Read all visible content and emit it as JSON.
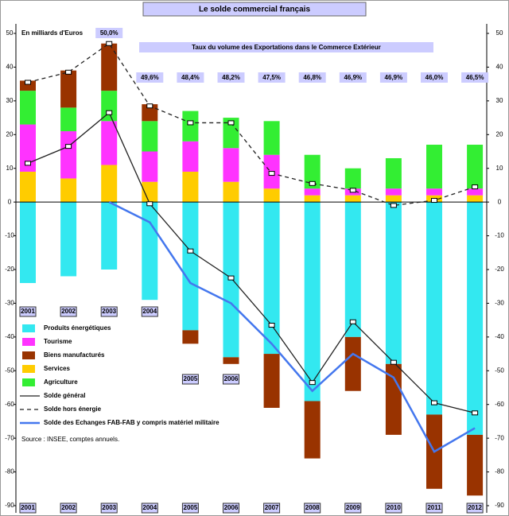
{
  "chart_data": {
    "type": "bar",
    "title": "Le solde commercial français",
    "y_label": "En milliards d'Euros",
    "source": "Source : INSEE, comptes annuels.",
    "categories": [
      "2001",
      "2002",
      "2003",
      "2004",
      "2005",
      "2006",
      "2007",
      "2008",
      "2009",
      "2010",
      "2011",
      "2012"
    ],
    "ylim": [
      -90,
      50
    ],
    "yticks": [
      -90,
      -80,
      -70,
      -60,
      -50,
      -40,
      -30,
      -20,
      -10,
      0,
      10,
      20,
      30,
      40,
      50
    ],
    "series": [
      {
        "name": "Produits énergétiques",
        "type": "bar",
        "color": "#33e8f0",
        "values": [
          -24,
          -22,
          -20,
          -29,
          -38,
          -46,
          -45,
          -59,
          -40,
          -48,
          -63,
          -69
        ]
      },
      {
        "name": "Tourisme",
        "type": "bar",
        "color": "#ff33ff",
        "values": [
          14,
          14,
          13,
          9,
          9,
          10,
          10,
          2,
          2,
          2,
          2,
          2
        ]
      },
      {
        "name": "Biens manufacturés",
        "type": "bar",
        "color": "#993300",
        "values": [
          3,
          11,
          14,
          5,
          -4,
          -2,
          -16,
          -17,
          -16,
          -21,
          -22,
          -18
        ]
      },
      {
        "name": "Services",
        "type": "bar",
        "color": "#ffcc00",
        "values": [
          9,
          7,
          11,
          6,
          9,
          6,
          4,
          2,
          2,
          2,
          2,
          2
        ]
      },
      {
        "name": "Agriculture",
        "type": "bar",
        "color": "#33ee33",
        "values": [
          10,
          7,
          9,
          9,
          9,
          9,
          10,
          10,
          6,
          9,
          13,
          13
        ]
      },
      {
        "name": "Solde général",
        "type": "line",
        "color": "#222222",
        "dash": false,
        "markers": true,
        "values": [
          11.5,
          16.5,
          26.5,
          -0.5,
          -14.5,
          -22.5,
          -36.5,
          -53.5,
          -35.5,
          -47.5,
          -59.5,
          -62.5
        ]
      },
      {
        "name": "Solde hors énergie",
        "type": "line",
        "color": "#222222",
        "dash": true,
        "markers": true,
        "values": [
          35.5,
          38.5,
          47,
          28.5,
          23.5,
          23.5,
          8.5,
          5.5,
          3.5,
          -1,
          0.5,
          4.5
        ]
      },
      {
        "name": "Solde des Echanges FAB-FAB y compris matériel militaire",
        "type": "line",
        "color": "#4477ee",
        "dash": false,
        "markers": false,
        "values": [
          null,
          null,
          0,
          -6,
          -24,
          -30,
          -42,
          -56,
          -45,
          -52,
          -74,
          -67
        ]
      }
    ],
    "export_rate": {
      "title": "Taux du volume des Exportations dans le Commerce Extérieur",
      "values": [
        null,
        null,
        50.0,
        49.6,
        48.4,
        48.2,
        47.5,
        46.8,
        46.9,
        46.9,
        46.0,
        46.5
      ],
      "value_labels": [
        null,
        null,
        "50,0%",
        "49,6%",
        "48,4%",
        "48,2%",
        "47,5%",
        "46,8%",
        "46,9%",
        "46,9%",
        "46,0%",
        "46,5%"
      ]
    }
  }
}
